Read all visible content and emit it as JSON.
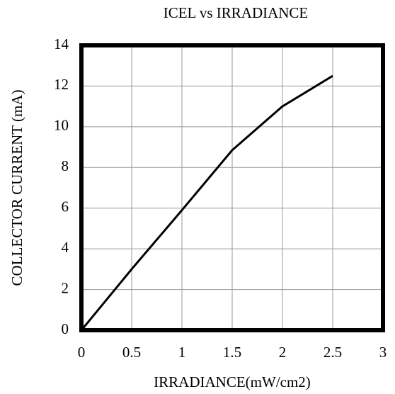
{
  "chart_data": {
    "type": "line",
    "title": "ICEL vs IRRADIANCE",
    "x_label": "IRRADIANCE(mW/cm2)",
    "y_label": "COLLECTOR CURRENT (mA)",
    "x": [
      0,
      0.5,
      1,
      1.5,
      2,
      2.5
    ],
    "values": [
      0,
      3,
      5.9,
      8.85,
      11,
      12.5
    ],
    "color": "#000000",
    "xlim": [
      0,
      3
    ],
    "xticks": [
      0,
      0.5,
      1,
      1.5,
      2,
      2.5,
      3
    ],
    "ylim": [
      0,
      14
    ],
    "yticks": [
      0,
      2,
      4,
      6,
      8,
      10,
      12,
      14
    ],
    "grid": true
  }
}
